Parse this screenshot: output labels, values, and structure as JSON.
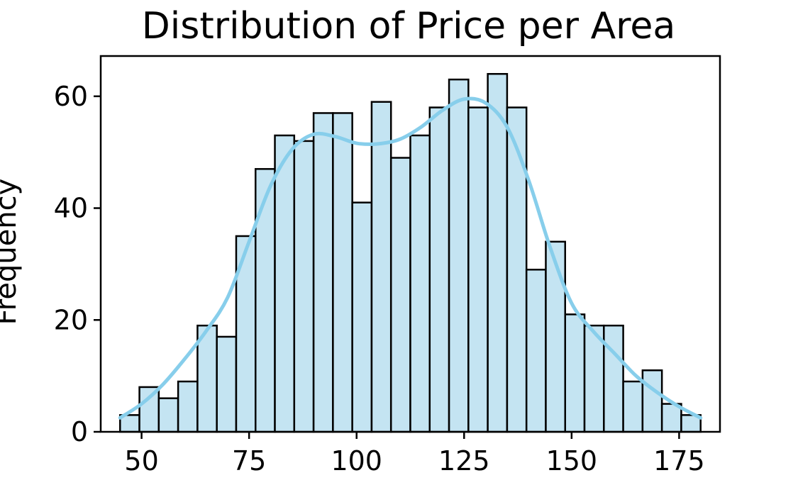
{
  "chart_data": {
    "type": "bar",
    "title": "Distribution of Price per Area",
    "xlabel": "",
    "ylabel": "Frequency",
    "bin_start": 45,
    "bin_width": 4.5,
    "values": [
      3,
      8,
      6,
      9,
      19,
      17,
      35,
      47,
      53,
      52,
      57,
      57,
      41,
      59,
      49,
      53,
      58,
      63,
      58,
      64,
      58,
      29,
      34,
      21,
      19,
      19,
      9,
      11,
      5,
      3
    ],
    "kde": {
      "x": [
        45,
        50,
        55,
        60,
        65,
        70,
        75,
        80,
        85,
        90,
        95,
        100,
        105,
        110,
        115,
        120,
        125,
        130,
        135,
        140,
        145,
        150,
        155,
        160,
        165,
        170,
        175,
        180
      ],
      "y": [
        2.5,
        5,
        8.5,
        13,
        18,
        24,
        34,
        44,
        50.5,
        53.2,
        52.8,
        51.6,
        51.5,
        52.3,
        54.5,
        57.5,
        59.5,
        58.8,
        54.5,
        45,
        33,
        23,
        18,
        14,
        10,
        7,
        4.5,
        2.5
      ]
    },
    "xlim": [
      40.5,
      184.5
    ],
    "ylim": [
      0,
      67.2
    ],
    "x_ticks": [
      50,
      75,
      100,
      125,
      150,
      175
    ],
    "y_ticks": [
      0,
      20,
      40,
      60
    ],
    "grid": false,
    "colors": {
      "bar_fill": "#c4e4f2",
      "bar_edge": "#000000",
      "kde_line": "#87ceeb"
    }
  }
}
